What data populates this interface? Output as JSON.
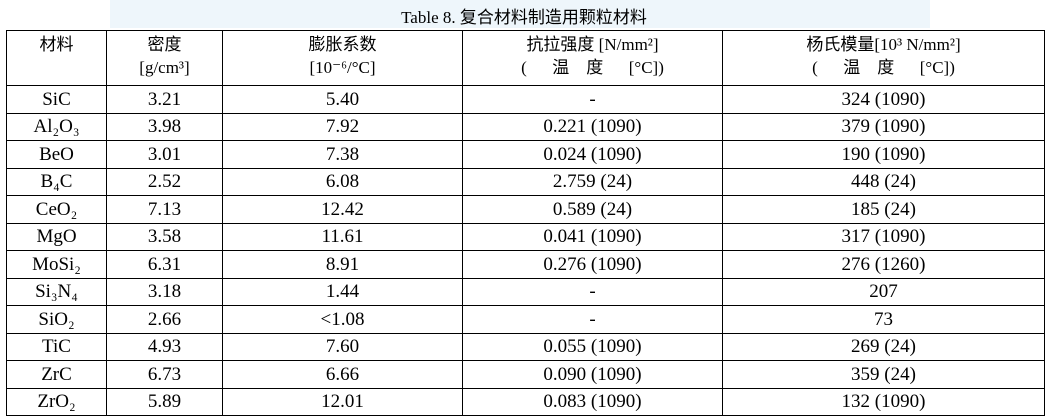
{
  "title": "Table 8. 复合材料制造用颗粒材料",
  "table": {
    "header": [
      [
        "材料"
      ],
      [
        "密度",
        "[g/cm³]"
      ],
      [
        "膨胀系数",
        "[10⁻⁶/°C]"
      ],
      [
        "抗拉强度 [N/mm²]",
        "(      温    度      [°C])"
      ],
      [
        "杨氏模量[10³ N/mm²]",
        "(      温    度      [°C])"
      ]
    ],
    "rows": [
      [
        "SiC",
        "3.21",
        "5.40",
        "-",
        "324 (1090)"
      ],
      [
        "Al₂O₃",
        "3.98",
        "7.92",
        "0.221 (1090)",
        "379 (1090)"
      ],
      [
        "BeO",
        "3.01",
        "7.38",
        "0.024 (1090)",
        "190 (1090)"
      ],
      [
        "B₄C",
        "2.52",
        "6.08",
        "2.759 (24)",
        "448 (24)"
      ],
      [
        "CeO₂",
        "7.13",
        "12.42",
        "0.589 (24)",
        "185 (24)"
      ],
      [
        "MgO",
        "3.58",
        "11.61",
        "0.041 (1090)",
        "317 (1090)"
      ],
      [
        "MoSi₂",
        "6.31",
        "8.91",
        "0.276 (1090)",
        "276 (1260)"
      ],
      [
        "Si₃N₄",
        "3.18",
        "1.44",
        "-",
        "207"
      ],
      [
        "SiO₂",
        "2.66",
        "<1.08",
        "-",
        "73"
      ],
      [
        "TiC",
        "4.93",
        "7.60",
        "0.055 (1090)",
        "269 (24)"
      ],
      [
        "ZrC",
        "6.73",
        "6.66",
        "0.090 (1090)",
        "359 (24)"
      ],
      [
        "ZrO₂",
        "5.89",
        "12.01",
        "0.083 (1090)",
        "132 (1090)"
      ]
    ]
  }
}
